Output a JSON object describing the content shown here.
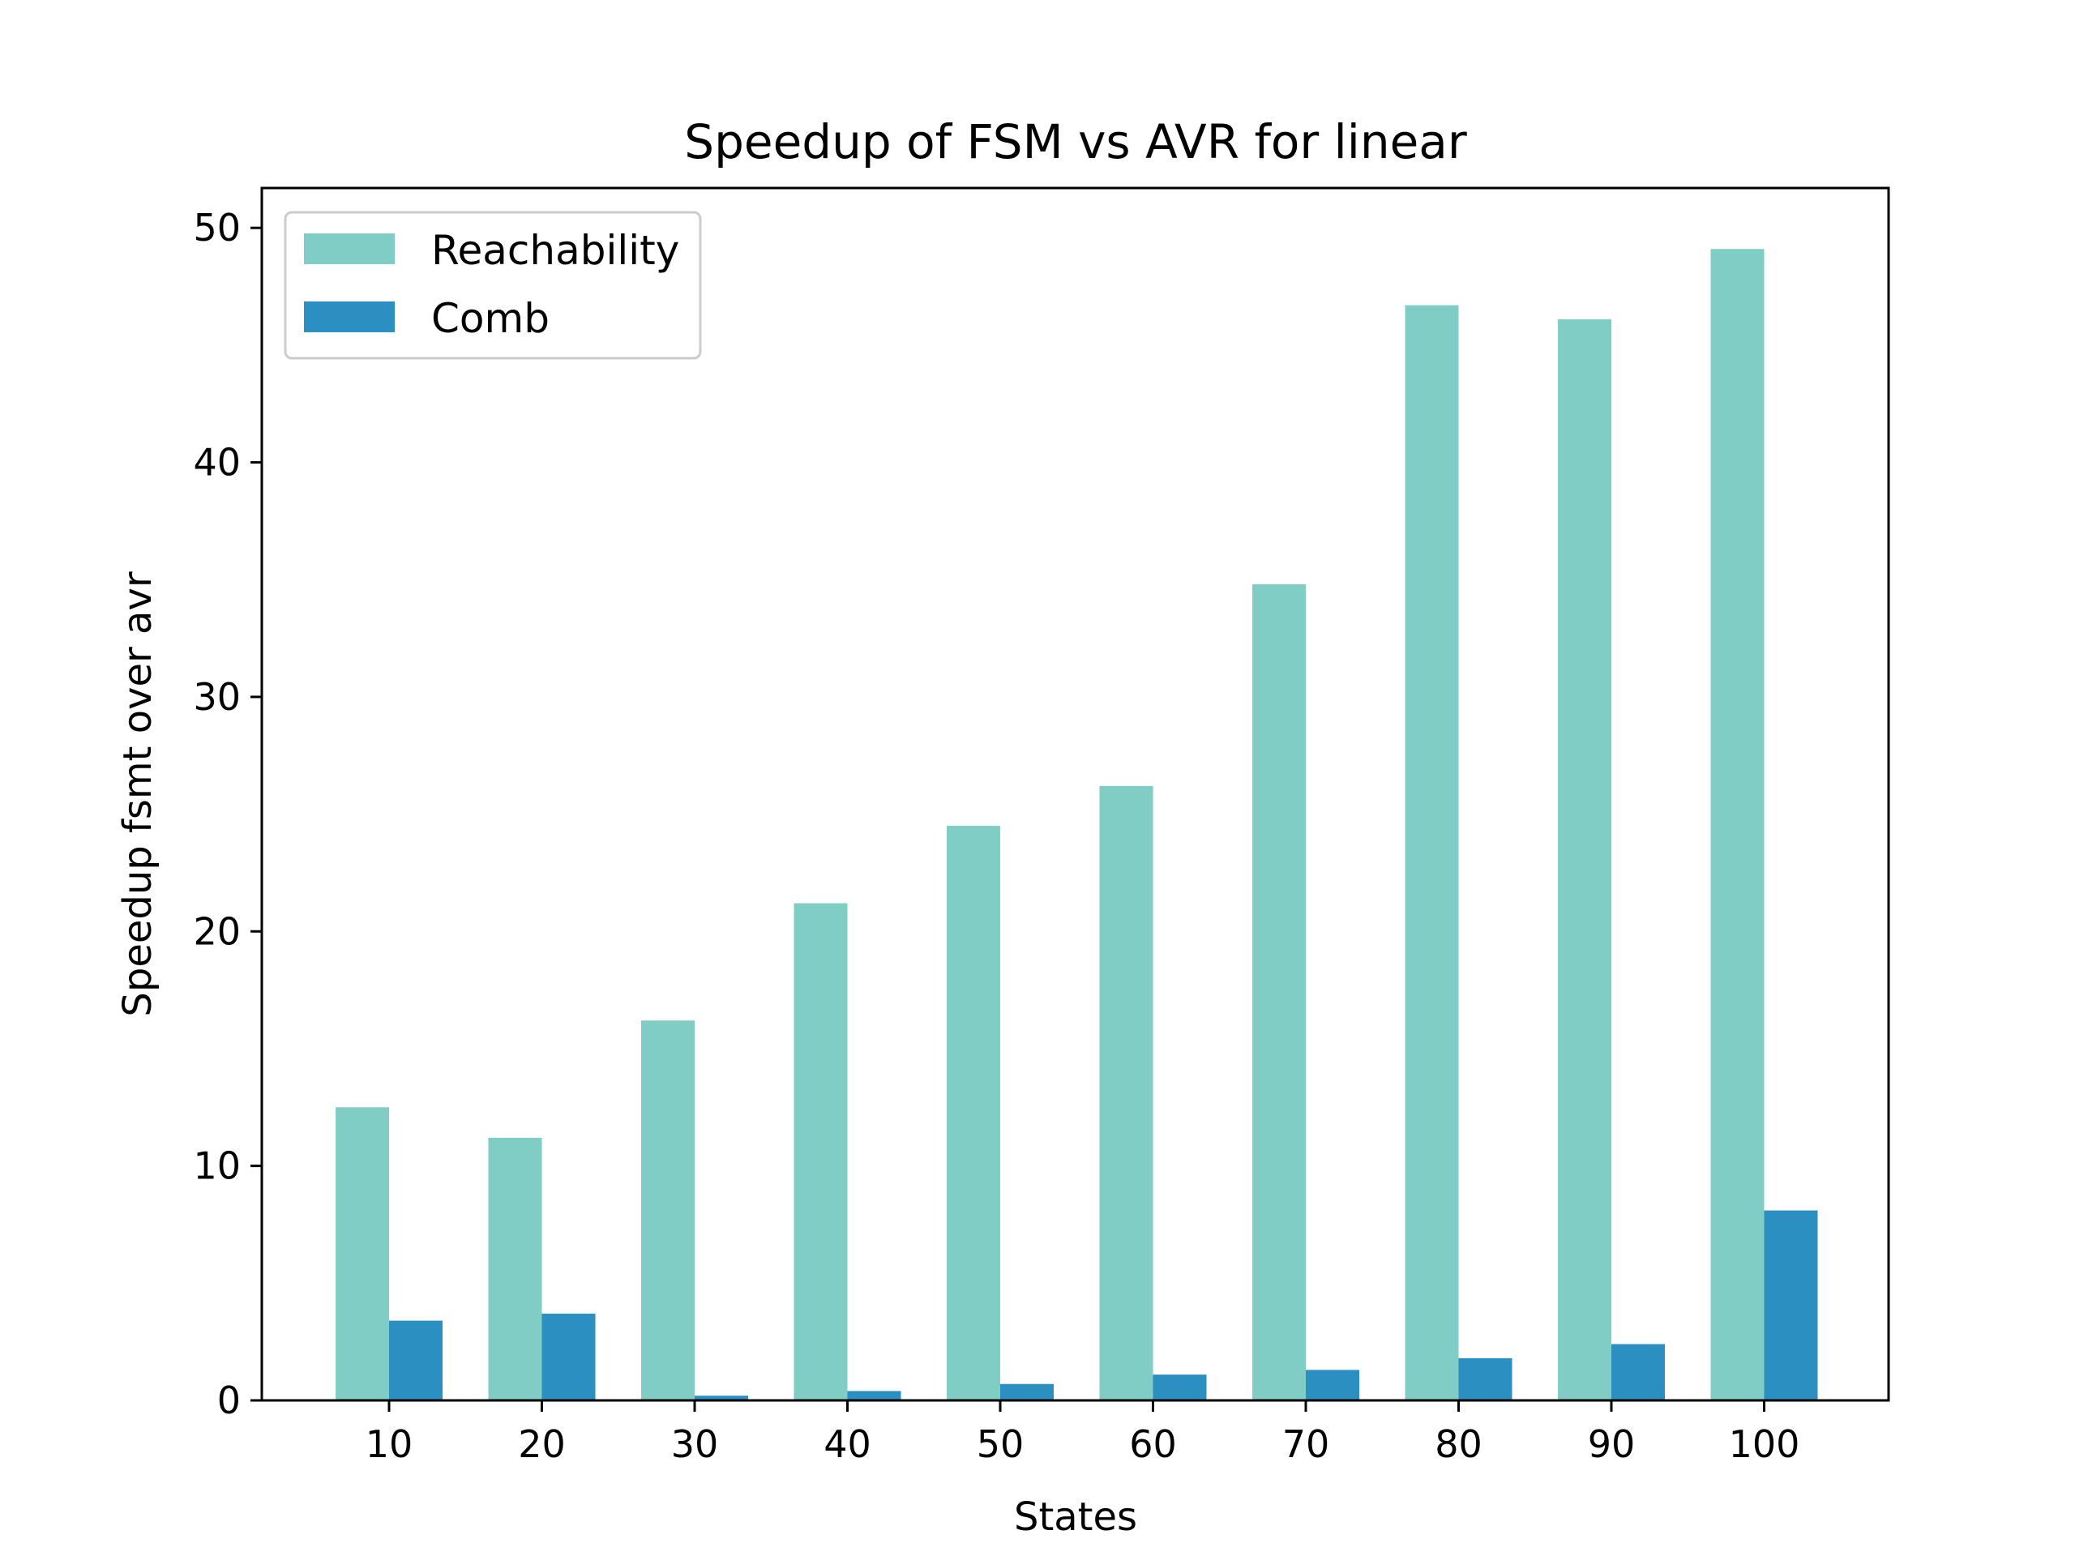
{
  "chart_data": {
    "type": "bar",
    "title": "Speedup of FSM vs AVR for linear",
    "xlabel": "States",
    "ylabel": "Speedup fsmt over avr",
    "categories": [
      "10",
      "20",
      "30",
      "40",
      "50",
      "60",
      "70",
      "80",
      "90",
      "100"
    ],
    "series": [
      {
        "name": "Reachability",
        "color": "#7fcdc4",
        "values": [
          12.5,
          11.2,
          16.2,
          21.2,
          24.5,
          26.2,
          34.8,
          46.7,
          46.1,
          49.1
        ]
      },
      {
        "name": "Comb",
        "color": "#2c8fc2",
        "values": [
          3.4,
          3.7,
          0.2,
          0.4,
          0.7,
          1.1,
          1.3,
          1.8,
          2.4,
          8.1
        ]
      }
    ],
    "ylim": [
      0,
      51.7
    ],
    "yticks": [
      0,
      10,
      20,
      30,
      40,
      50
    ],
    "grid": false,
    "legend": "top-left"
  }
}
